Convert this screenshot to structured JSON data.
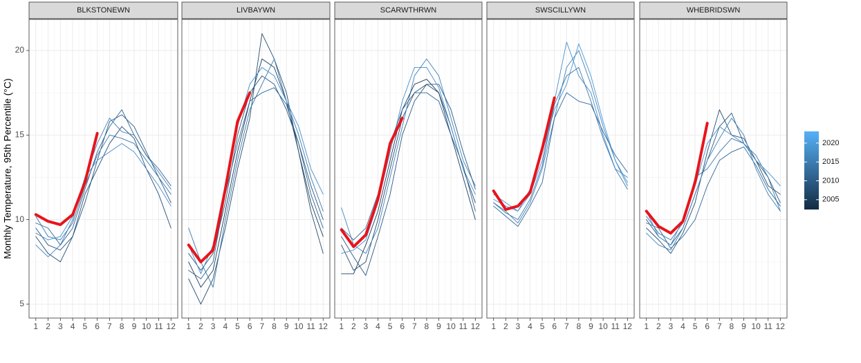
{
  "chart_data": [
    {
      "type": "line",
      "title": "BLKSTONEWN",
      "y_label": "Monthly Temperature, 95th Percentile (°C)",
      "x": [
        1,
        2,
        3,
        4,
        5,
        6,
        7,
        8,
        9,
        10,
        11,
        12
      ],
      "xlim": [
        0.45,
        12.55
      ],
      "xticks": [
        1,
        2,
        3,
        4,
        5,
        6,
        7,
        8,
        9,
        10,
        11,
        12
      ],
      "ylim": [
        4.18,
        21.84
      ],
      "yticks": [
        5,
        10,
        15,
        20
      ],
      "grid": true,
      "series": [
        {
          "color": "#2a5780",
          "values": [
            9.5,
            8.5,
            8.2,
            9.0,
            11.0,
            13.5,
            15.8,
            16.2,
            15.5,
            14.0,
            12.5,
            11.0
          ]
        },
        {
          "color": "#3a77aa",
          "values": [
            10.2,
            9.0,
            8.8,
            9.8,
            12.0,
            13.8,
            15.0,
            14.8,
            14.5,
            13.5,
            12.5,
            11.5
          ]
        },
        {
          "color": "#244d72",
          "values": [
            9.0,
            8.0,
            7.5,
            9.0,
            11.5,
            13.0,
            14.5,
            15.5,
            14.8,
            13.0,
            11.5,
            9.5
          ]
        },
        {
          "color": "#3f82bb",
          "values": [
            8.5,
            7.8,
            8.5,
            10.0,
            12.5,
            14.5,
            16.0,
            15.2,
            15.0,
            13.8,
            12.8,
            11.8
          ]
        },
        {
          "color": "#2f6592",
          "values": [
            9.8,
            9.5,
            8.5,
            9.5,
            11.8,
            14.0,
            15.5,
            16.5,
            15.0,
            13.8,
            13.0,
            12.0
          ]
        },
        {
          "color": "#458ccb",
          "values": [
            9.2,
            8.8,
            9.0,
            10.2,
            12.5,
            13.5,
            14.0,
            14.5,
            14.0,
            13.0,
            12.0,
            10.8
          ]
        },
        {
          "color": "#e8141b",
          "values": [
            10.3,
            9.9,
            9.7,
            10.3,
            12.2,
            15.1,
            null,
            null,
            null,
            null,
            null,
            null
          ]
        }
      ]
    },
    {
      "type": "line",
      "title": "LIVBAYWN",
      "x": [
        1,
        2,
        3,
        4,
        5,
        6,
        7,
        8,
        9,
        10,
        11,
        12
      ],
      "xlim": [
        0.45,
        12.55
      ],
      "xticks": [
        1,
        2,
        3,
        4,
        5,
        6,
        7,
        8,
        9,
        10,
        11,
        12
      ],
      "ylim": [
        4.18,
        21.84
      ],
      "yticks": [
        5,
        10,
        15,
        20
      ],
      "grid": true,
      "series": [
        {
          "color": "#1d3b59",
          "values": [
            7.5,
            6.0,
            7.0,
            10.5,
            14.0,
            17.0,
            19.5,
            19.0,
            17.0,
            14.0,
            11.0,
            9.0
          ]
        },
        {
          "color": "#2a5780",
          "values": [
            8.0,
            7.0,
            8.0,
            11.0,
            15.0,
            17.5,
            18.5,
            18.0,
            16.5,
            14.5,
            12.0,
            10.0
          ]
        },
        {
          "color": "#244d72",
          "values": [
            6.5,
            5.0,
            6.5,
            9.5,
            13.0,
            16.0,
            21.0,
            19.5,
            17.5,
            14.0,
            10.5,
            8.0
          ]
        },
        {
          "color": "#3a77aa",
          "values": [
            9.5,
            7.5,
            6.0,
            10.0,
            13.5,
            16.5,
            18.0,
            19.5,
            17.0,
            15.0,
            12.5,
            10.5
          ]
        },
        {
          "color": "#2f6592",
          "values": [
            7.0,
            6.5,
            7.5,
            11.5,
            14.5,
            17.0,
            17.5,
            17.8,
            16.8,
            14.5,
            11.5,
            9.5
          ]
        },
        {
          "color": "#458ccb",
          "values": [
            8.5,
            6.8,
            8.5,
            12.0,
            15.5,
            18.0,
            19.0,
            18.5,
            17.0,
            15.5,
            13.0,
            11.5
          ]
        },
        {
          "color": "#e8141b",
          "values": [
            8.5,
            7.5,
            8.2,
            11.8,
            15.8,
            17.5,
            null,
            null,
            null,
            null,
            null,
            null
          ]
        }
      ]
    },
    {
      "type": "line",
      "title": "SCARWTHRWN",
      "x": [
        1,
        2,
        3,
        4,
        5,
        6,
        7,
        8,
        9,
        10,
        11,
        12
      ],
      "xlim": [
        0.45,
        12.55
      ],
      "xticks": [
        1,
        2,
        3,
        4,
        5,
        6,
        7,
        8,
        9,
        10,
        11,
        12
      ],
      "ylim": [
        4.18,
        21.84
      ],
      "yticks": [
        5,
        10,
        15,
        20
      ],
      "grid": true,
      "series": [
        {
          "color": "#244d72",
          "values": [
            8.5,
            7.0,
            7.5,
            10.0,
            13.0,
            16.0,
            17.5,
            18.0,
            17.5,
            15.5,
            13.0,
            11.0
          ]
        },
        {
          "color": "#3f82bb",
          "values": [
            10.7,
            8.5,
            8.0,
            9.5,
            12.5,
            15.5,
            18.5,
            19.5,
            18.5,
            16.0,
            13.5,
            12.0
          ]
        },
        {
          "color": "#1d3b59",
          "values": [
            6.8,
            6.8,
            8.5,
            10.5,
            13.5,
            16.5,
            18.0,
            18.3,
            17.5,
            15.0,
            12.5,
            10.0
          ]
        },
        {
          "color": "#2a5780",
          "values": [
            9.0,
            7.8,
            6.7,
            9.0,
            11.5,
            15.0,
            17.0,
            18.0,
            18.0,
            16.5,
            14.0,
            11.8
          ]
        },
        {
          "color": "#458ccb",
          "values": [
            8.0,
            8.2,
            8.8,
            11.0,
            14.0,
            17.0,
            19.0,
            19.0,
            17.8,
            15.5,
            13.0,
            11.5
          ]
        },
        {
          "color": "#2f6592",
          "values": [
            9.5,
            8.8,
            9.5,
            11.5,
            14.5,
            16.5,
            17.5,
            17.5,
            17.0,
            15.0,
            13.2,
            10.5
          ]
        },
        {
          "color": "#e8141b",
          "values": [
            9.4,
            8.4,
            9.1,
            11.2,
            14.5,
            16.0,
            null,
            null,
            null,
            null,
            null,
            null
          ]
        }
      ]
    },
    {
      "type": "line",
      "title": "SWSCILLYWN",
      "x": [
        1,
        2,
        3,
        4,
        5,
        6,
        7,
        8,
        9,
        10,
        11,
        12
      ],
      "xlim": [
        0.45,
        12.55
      ],
      "xticks": [
        1,
        2,
        3,
        4,
        5,
        6,
        7,
        8,
        9,
        10,
        11,
        12
      ],
      "ylim": [
        4.18,
        21.84
      ],
      "yticks": [
        5,
        10,
        15,
        20
      ],
      "grid": true,
      "series": [
        {
          "color": "#3f82bb",
          "values": [
            11.0,
            10.5,
            9.8,
            11.0,
            13.0,
            16.0,
            19.0,
            20.0,
            18.0,
            15.5,
            13.5,
            12.0
          ]
        },
        {
          "color": "#458ccb",
          "values": [
            11.5,
            11.0,
            10.5,
            11.5,
            13.5,
            17.0,
            20.5,
            18.5,
            17.5,
            15.0,
            13.0,
            12.5
          ]
        },
        {
          "color": "#2f6592",
          "values": [
            10.8,
            10.2,
            9.6,
            10.8,
            12.2,
            16.0,
            17.5,
            17.0,
            16.8,
            15.2,
            13.8,
            12.8
          ]
        },
        {
          "color": "#4a96d6",
          "values": [
            11.2,
            10.8,
            10.5,
            11.8,
            14.0,
            16.5,
            18.0,
            20.4,
            18.5,
            15.8,
            13.5,
            12.2
          ]
        },
        {
          "color": "#3a77aa",
          "values": [
            11.0,
            10.4,
            10.0,
            11.2,
            13.2,
            16.8,
            18.5,
            19.0,
            17.0,
            14.8,
            13.0,
            11.8
          ]
        },
        {
          "color": "#e8141b",
          "values": [
            11.7,
            10.6,
            10.8,
            11.6,
            14.2,
            17.2,
            null,
            null,
            null,
            null,
            null,
            null
          ]
        }
      ]
    },
    {
      "type": "line",
      "title": "WHEBRIDSWN",
      "x": [
        1,
        2,
        3,
        4,
        5,
        6,
        7,
        8,
        9,
        10,
        11,
        12
      ],
      "xlim": [
        0.45,
        12.55
      ],
      "xticks": [
        1,
        2,
        3,
        4,
        5,
        6,
        7,
        8,
        9,
        10,
        11,
        12
      ],
      "ylim": [
        4.18,
        21.84
      ],
      "yticks": [
        5,
        10,
        15,
        20
      ],
      "grid": true,
      "series": [
        {
          "color": "#2a5780",
          "values": [
            10.0,
            9.0,
            8.5,
            9.5,
            11.5,
            13.5,
            15.5,
            16.3,
            14.5,
            13.5,
            12.5,
            11.0
          ]
        },
        {
          "color": "#244d72",
          "values": [
            9.5,
            8.8,
            8.0,
            9.2,
            11.0,
            14.0,
            16.5,
            15.0,
            14.8,
            13.5,
            12.0,
            11.5
          ]
        },
        {
          "color": "#3a77aa",
          "values": [
            10.2,
            9.2,
            8.8,
            9.8,
            12.5,
            13.0,
            14.0,
            14.8,
            14.5,
            13.8,
            12.5,
            10.5
          ]
        },
        {
          "color": "#2f6592",
          "values": [
            9.8,
            9.5,
            8.3,
            9.0,
            10.0,
            12.0,
            13.5,
            14.0,
            14.3,
            13.2,
            11.8,
            10.8
          ]
        },
        {
          "color": "#458ccb",
          "values": [
            10.5,
            9.0,
            8.5,
            10.0,
            12.0,
            14.5,
            15.5,
            15.0,
            14.5,
            13.5,
            12.8,
            12.0
          ]
        },
        {
          "color": "#3f82bb",
          "values": [
            9.2,
            8.5,
            8.2,
            9.5,
            11.5,
            13.5,
            14.8,
            16.0,
            15.0,
            13.0,
            11.5,
            10.5
          ]
        },
        {
          "color": "#e8141b",
          "values": [
            10.5,
            9.6,
            9.2,
            9.9,
            12.2,
            15.7,
            null,
            null,
            null,
            null,
            null,
            null
          ]
        }
      ]
    }
  ],
  "colorbar": {
    "lim": [
      2002.4,
      2023.1
    ],
    "ticks": [
      2005,
      2010,
      2015,
      2020
    ],
    "colors": [
      "#132B43",
      "#56B1F7"
    ]
  }
}
